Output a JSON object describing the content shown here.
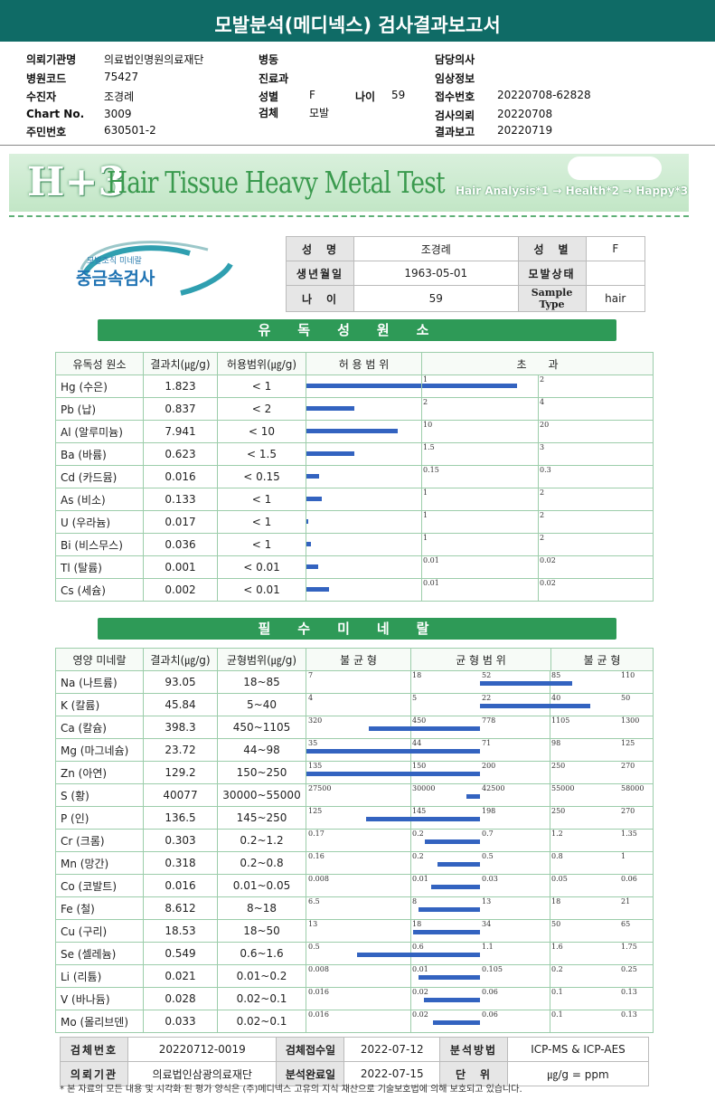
{
  "title": "모발분석(메디넥스) 검사결과보고서",
  "info": {
    "left": [
      {
        "label": "의뢰기관명",
        "value": "의료법인명원의료재단"
      },
      {
        "label": "병원코드",
        "value": "75427"
      },
      {
        "label": "수진자",
        "value": "조경례"
      },
      {
        "label": "Chart No.",
        "value": "3009"
      },
      {
        "label": "주민번호",
        "value": "630501-2"
      }
    ],
    "mid": [
      {
        "label": "병동",
        "value": ""
      },
      {
        "label": "진료과",
        "value": ""
      },
      {
        "label": "성별",
        "value": "F"
      },
      {
        "label": "검체",
        "value": "모발"
      }
    ],
    "age_label": "나이",
    "age_value": "59",
    "right": [
      {
        "label": "담당의사",
        "value": ""
      },
      {
        "label": "임상정보",
        "value": ""
      },
      {
        "label": "접수번호",
        "value": "20220708-62828"
      },
      {
        "label": "검사의뢰",
        "value": "20220708"
      },
      {
        "label": "결과보고",
        "value": "20220719"
      }
    ]
  },
  "banner": {
    "logo": "H+3",
    "title": "Hair Tissue Heavy Metal Test",
    "sub": "Hair Analysis*1 → Health*2 → Happy*3"
  },
  "brand": {
    "sub": "모발조직 미네랄",
    "main": "중금속검사"
  },
  "patient": {
    "name_label": "성　명",
    "name": "조경례",
    "sex_label": "성　별",
    "sex": "F",
    "dob_label": "생년월일",
    "dob": "1963-05-01",
    "hair_label": "모발상태",
    "hair": "",
    "age_label": "나　이",
    "age": "59",
    "sample_label": "Sample Type",
    "sample": "hair"
  },
  "toxic": {
    "section": "유독성원소",
    "headers": {
      "name": "유독성 원소",
      "value": "결과치(㎍/g)",
      "range": "허용범위(㎍/g)",
      "allowed": "허 용 범 위",
      "over": "초　　과"
    },
    "rows": [
      {
        "name": "Hg (수은)",
        "value": "1.823",
        "range": "< 1",
        "t1": "1",
        "t2": "2",
        "bar": 1.823,
        "limit": 1
      },
      {
        "name": "Pb (납)",
        "value": "0.837",
        "range": "< 2",
        "t1": "2",
        "t2": "4",
        "bar": 0.837,
        "limit": 2
      },
      {
        "name": "Al (알루미늄)",
        "value": "7.941",
        "range": "< 10",
        "t1": "10",
        "t2": "20",
        "bar": 7.941,
        "limit": 10
      },
      {
        "name": "Ba (바륨)",
        "value": "0.623",
        "range": "< 1.5",
        "t1": "1.5",
        "t2": "3",
        "bar": 0.623,
        "limit": 1.5
      },
      {
        "name": "Cd (카드뮴)",
        "value": "0.016",
        "range": "< 0.15",
        "t1": "0.15",
        "t2": "0.3",
        "bar": 0.016,
        "limit": 0.15
      },
      {
        "name": "As (비소)",
        "value": "0.133",
        "range": "< 1",
        "t1": "1",
        "t2": "2",
        "bar": 0.133,
        "limit": 1
      },
      {
        "name": "U (우라늄)",
        "value": "0.017",
        "range": "< 1",
        "t1": "1",
        "t2": "2",
        "bar": 0.017,
        "limit": 1
      },
      {
        "name": "Bi (비스무스)",
        "value": "0.036",
        "range": "< 1",
        "t1": "1",
        "t2": "2",
        "bar": 0.036,
        "limit": 1
      },
      {
        "name": "Tl (탈륨)",
        "value": "0.001",
        "range": "< 0.01",
        "t1": "0.01",
        "t2": "0.02",
        "bar": 0.001,
        "limit": 0.01
      },
      {
        "name": "Cs (세슘)",
        "value": "0.002",
        "range": "< 0.01",
        "t1": "0.01",
        "t2": "0.02",
        "bar": 0.002,
        "limit": 0.01
      }
    ]
  },
  "minerals": {
    "section": "필수미네랄",
    "headers": {
      "name": "영양 미네랄",
      "value": "결과치(㎍/g)",
      "range": "균형범위(㎍/g)",
      "low": "불 균 형",
      "mid": "균 형 범 위",
      "high": "불 균 형"
    },
    "rows": [
      {
        "name": "Na (나트륨)",
        "value": "93.05",
        "range": "18~85",
        "t": [
          "7",
          "18",
          "52",
          "85",
          "110"
        ],
        "bar": [
          7,
          18,
          52,
          85,
          110,
          93.05
        ]
      },
      {
        "name": "K (칼륨)",
        "value": "45.84",
        "range": "5~40",
        "t": [
          "4",
          "5",
          "22",
          "40",
          "50"
        ],
        "bar": [
          4,
          5,
          22,
          40,
          50,
          45.84
        ]
      },
      {
        "name": "Ca (칼슘)",
        "value": "398.3",
        "range": "450~1105",
        "t": [
          "320",
          "450",
          "778",
          "1105",
          "1300"
        ],
        "bar": [
          320,
          450,
          778,
          1105,
          1300,
          398.3
        ]
      },
      {
        "name": "Mg (마그네슘)",
        "value": "23.72",
        "range": "44~98",
        "t": [
          "35",
          "44",
          "71",
          "98",
          "125"
        ],
        "bar": [
          35,
          44,
          71,
          98,
          125,
          23.72
        ]
      },
      {
        "name": "Zn (아연)",
        "value": "129.2",
        "range": "150~250",
        "t": [
          "135",
          "150",
          "200",
          "250",
          "270"
        ],
        "bar": [
          135,
          150,
          200,
          250,
          270,
          129.2
        ]
      },
      {
        "name": "S (황)",
        "value": "40077",
        "range": "30000~55000",
        "t": [
          "27500",
          "30000",
          "42500",
          "55000",
          "58000"
        ],
        "bar": [
          27500,
          30000,
          42500,
          55000,
          58000,
          40077
        ]
      },
      {
        "name": "P (인)",
        "value": "136.5",
        "range": "145~250",
        "t": [
          "125",
          "145",
          "198",
          "250",
          "270"
        ],
        "bar": [
          125,
          145,
          198,
          250,
          270,
          136.5
        ]
      },
      {
        "name": "Cr (크롬)",
        "value": "0.303",
        "range": "0.2~1.2",
        "t": [
          "0.17",
          "0.2",
          "0.7",
          "1.2",
          "1.35"
        ],
        "bar": [
          0.17,
          0.2,
          0.7,
          1.2,
          1.35,
          0.303
        ]
      },
      {
        "name": "Mn (망간)",
        "value": "0.318",
        "range": "0.2~0.8",
        "t": [
          "0.16",
          "0.2",
          "0.5",
          "0.8",
          "1"
        ],
        "bar": [
          0.16,
          0.2,
          0.5,
          0.8,
          1,
          0.318
        ]
      },
      {
        "name": "Co (코발트)",
        "value": "0.016",
        "range": "0.01~0.05",
        "t": [
          "0.008",
          "0.01",
          "0.03",
          "0.05",
          "0.06"
        ],
        "bar": [
          0.008,
          0.01,
          0.03,
          0.05,
          0.06,
          0.016
        ]
      },
      {
        "name": "Fe (철)",
        "value": "8.612",
        "range": "8~18",
        "t": [
          "6.5",
          "8",
          "13",
          "18",
          "21"
        ],
        "bar": [
          6.5,
          8,
          13,
          18,
          21,
          8.612
        ]
      },
      {
        "name": "Cu (구리)",
        "value": "18.53",
        "range": "18~50",
        "t": [
          "13",
          "18",
          "34",
          "50",
          "65"
        ],
        "bar": [
          13,
          18,
          34,
          50,
          65,
          18.53
        ]
      },
      {
        "name": "Se (셀레늄)",
        "value": "0.549",
        "range": "0.6~1.6",
        "t": [
          "0.5",
          "0.6",
          "1.1",
          "1.6",
          "1.75"
        ],
        "bar": [
          0.5,
          0.6,
          1.1,
          1.6,
          1.75,
          0.549
        ]
      },
      {
        "name": "Li (리튬)",
        "value": "0.021",
        "range": "0.01~0.2",
        "t": [
          "0.008",
          "0.01",
          "0.105",
          "0.2",
          "0.25"
        ],
        "bar": [
          0.008,
          0.01,
          0.105,
          0.2,
          0.25,
          0.021
        ]
      },
      {
        "name": "V (바나듐)",
        "value": "0.028",
        "range": "0.02~0.1",
        "t": [
          "0.016",
          "0.02",
          "0.06",
          "0.1",
          "0.13"
        ],
        "bar": [
          0.016,
          0.02,
          0.06,
          0.1,
          0.13,
          0.028
        ]
      },
      {
        "name": "Mo (몰리브덴)",
        "value": "0.033",
        "range": "0.02~0.1",
        "t": [
          "0.016",
          "0.02",
          "0.06",
          "0.1",
          "0.13"
        ],
        "bar": [
          0.016,
          0.02,
          0.06,
          0.1,
          0.13,
          0.033
        ]
      }
    ]
  },
  "footer": {
    "specimen_label": "검체번호",
    "specimen": "20220712-0019",
    "received_label": "검체접수일",
    "received": "2022-07-12",
    "method_label": "분석방법",
    "method": "ICP-MS & ICP-AES",
    "institute_label": "의뢰기관",
    "institute": "의료법인삼광의료재단",
    "done_label": "분석완료일",
    "done": "2022-07-15",
    "unit_label": "단　위",
    "unit": "㎍/g = ppm",
    "note": "* 본 자료의 모든 내용 및 시각화 된 평가 양식은 (주)메디넥스 고유의 지식 재산으로 기술보호법에 의해 보호되고 있습니다."
  }
}
